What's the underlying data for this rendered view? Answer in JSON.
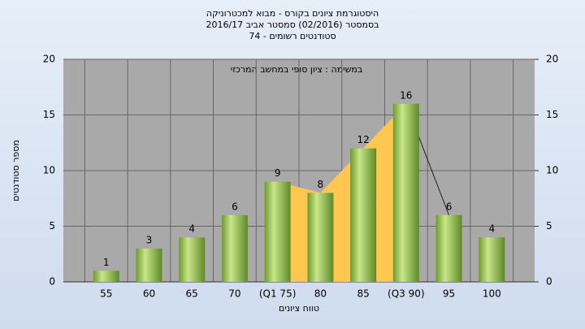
{
  "chart_data": {
    "type": "bar",
    "title": "היסטוגרמת ציונים בקורס - מבוא למכטרוניקה",
    "subtitle": "בסמסטר  (02/2016)  סמסטר אביב 2016/17",
    "subtitle2": "סטודנטים רשומים - 74",
    "annotation": "במשימה : ציון סופי במחשב המרכזי",
    "x_label": "טווח ציונים",
    "y_label": "מספר סטודנטים",
    "categories": [
      "55",
      "60",
      "65",
      "70",
      "(Q1 75)",
      "80",
      "85",
      "(Q3 90)",
      "95",
      "100"
    ],
    "values": [
      1,
      3,
      4,
      6,
      9,
      8,
      12,
      16,
      6,
      4
    ],
    "color": "#8fbf4a",
    "ylim": [
      0,
      20
    ],
    "yticks": [
      0,
      5,
      10,
      15,
      20
    ],
    "y2lim": [
      0,
      20
    ],
    "y2ticks": [
      0,
      5,
      10,
      15,
      20
    ],
    "grid": true
  }
}
